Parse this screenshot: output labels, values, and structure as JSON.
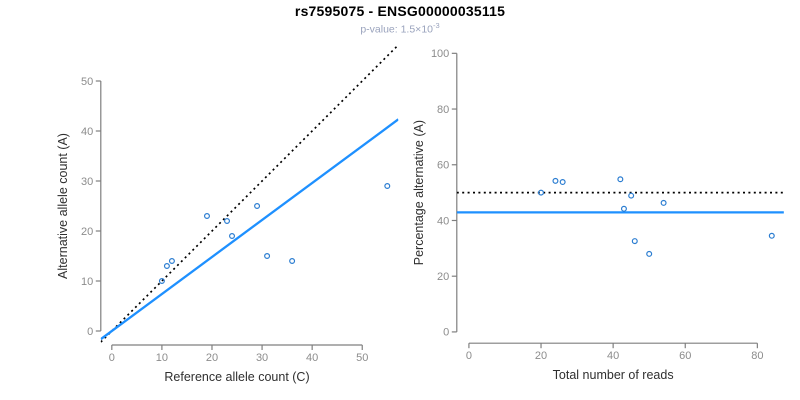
{
  "header": {
    "title": "rs7595075 - ENSG00000035115",
    "subtitle": {
      "prefix": "p-value: 1.5×10",
      "exponent": "-3"
    }
  },
  "colors": {
    "accent_blue": "#1E90FF",
    "point_blue": "#2b7dd1",
    "identity_black": "#000000",
    "axis_gray": "#7f7f7f",
    "tick_label_gray": "#8c8c8c",
    "axis_title_color": "#2f2f2f",
    "subtitle_color": "#9aa3bd"
  },
  "chart_data": [
    {
      "type": "scatter",
      "name": "allele-counts-panel",
      "xlabel": "Reference allele count (C)",
      "ylabel": "Alternative allele count (A)",
      "xticks": [
        0,
        10,
        20,
        30,
        40,
        50
      ],
      "yticks": [
        0,
        10,
        20,
        30,
        40,
        50
      ],
      "xlim": [
        -2.2,
        57.2
      ],
      "ylim": [
        -2.8,
        57.2
      ],
      "grid": false,
      "legend": "none",
      "point_shape": "open-circle",
      "points": [
        [
          10,
          10
        ],
        [
          11,
          13
        ],
        [
          12,
          14
        ],
        [
          19,
          23
        ],
        [
          23,
          22
        ],
        [
          24,
          19
        ],
        [
          29,
          25
        ],
        [
          31,
          15
        ],
        [
          36,
          14
        ],
        [
          55,
          29
        ]
      ],
      "lines": [
        {
          "name": "identity-line",
          "style": "dotted",
          "color": "#000000",
          "slope": 1,
          "intercept": 0
        },
        {
          "name": "regression-line",
          "style": "solid",
          "color": "#1E90FF",
          "slope": 0.74,
          "intercept": 0
        }
      ]
    },
    {
      "type": "scatter",
      "name": "percentage-panel",
      "xlabel": "Total number of reads",
      "ylabel": "Percentage alternative (A)",
      "xticks": [
        0,
        20,
        40,
        60,
        80
      ],
      "yticks": [
        0,
        20,
        40,
        60,
        80,
        100
      ],
      "xlim": [
        -3.36,
        87.36
      ],
      "ylim": [
        -4.05,
        104.1
      ],
      "grid": false,
      "legend": "none",
      "point_shape": "open-circle",
      "points": [
        [
          20,
          50.0
        ],
        [
          24,
          54.2
        ],
        [
          26,
          53.8
        ],
        [
          42,
          54.8
        ],
        [
          45,
          48.9
        ],
        [
          43,
          44.2
        ],
        [
          54,
          46.3
        ],
        [
          46,
          32.6
        ],
        [
          50,
          28.0
        ],
        [
          84,
          34.5
        ]
      ],
      "lines": [
        {
          "name": "expected-50pct-line",
          "style": "dotted",
          "color": "#000000",
          "slope": 0,
          "intercept": 50
        },
        {
          "name": "mean-percentage-line",
          "style": "solid",
          "color": "#1E90FF",
          "slope": 0,
          "intercept": 42.9
        }
      ]
    }
  ]
}
